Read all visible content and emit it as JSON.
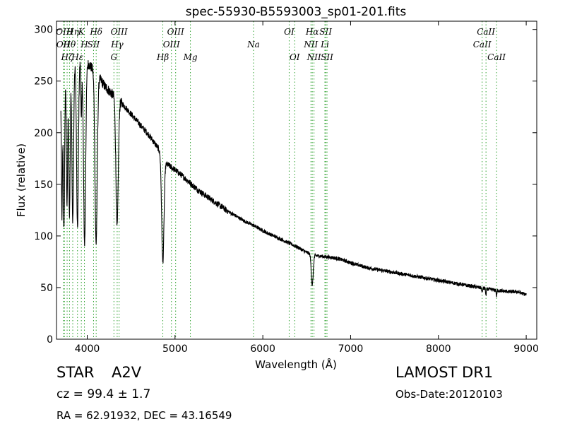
{
  "chart_data": {
    "type": "line",
    "title": "spec-55930-B5593003_sp01-201.fits",
    "xlabel": "Wavelength (Å)",
    "ylabel": "Flux (relative)",
    "xlim": [
      3650,
      9120
    ],
    "ylim": [
      0,
      308
    ],
    "xticks": [
      4000,
      5000,
      6000,
      7000,
      8000,
      9000
    ],
    "yticks": [
      0,
      50,
      100,
      150,
      200,
      250,
      300
    ],
    "grid": false,
    "line_color": "#000000",
    "marker_color": "#2ca02c",
    "spectrum": {
      "continuum": [
        [
          3700,
          236
        ],
        [
          3800,
          262
        ],
        [
          3900,
          268
        ],
        [
          4000,
          268
        ],
        [
          4100,
          258
        ],
        [
          4200,
          245
        ],
        [
          4300,
          236
        ],
        [
          4400,
          228
        ],
        [
          4500,
          218
        ],
        [
          4600,
          208
        ],
        [
          4700,
          198
        ],
        [
          4800,
          186
        ],
        [
          4900,
          170
        ],
        [
          5000,
          164
        ],
        [
          5100,
          157
        ],
        [
          5200,
          149
        ],
        [
          5300,
          142
        ],
        [
          5400,
          136
        ],
        [
          5500,
          130
        ],
        [
          5600,
          124
        ],
        [
          5700,
          119
        ],
        [
          5800,
          114
        ],
        [
          5900,
          110
        ],
        [
          6000,
          105
        ],
        [
          6100,
          101
        ],
        [
          6200,
          97
        ],
        [
          6300,
          93
        ],
        [
          6400,
          89
        ],
        [
          6500,
          84
        ],
        [
          6600,
          81
        ],
        [
          6700,
          80
        ],
        [
          6800,
          79
        ],
        [
          6900,
          77
        ],
        [
          7000,
          74
        ],
        [
          7200,
          69
        ],
        [
          7400,
          66
        ],
        [
          7600,
          63
        ],
        [
          7800,
          60
        ],
        [
          8000,
          57
        ],
        [
          8200,
          54
        ],
        [
          8400,
          51
        ],
        [
          8600,
          48
        ],
        [
          8800,
          46
        ],
        [
          8900,
          46
        ],
        [
          9000,
          43
        ]
      ],
      "absorption_lines": [
        {
          "center": 3712,
          "depth": 120,
          "width": 6
        },
        {
          "center": 3735,
          "depth": 140,
          "width": 7
        },
        {
          "center": 3770,
          "depth": 125,
          "width": 7
        },
        {
          "center": 3798,
          "depth": 140,
          "width": 8
        },
        {
          "center": 3835,
          "depth": 150,
          "width": 9
        },
        {
          "center": 3889,
          "depth": 160,
          "width": 10
        },
        {
          "center": 3933,
          "depth": 55,
          "width": 5
        },
        {
          "center": 3970,
          "depth": 175,
          "width": 12
        },
        {
          "center": 4101,
          "depth": 165,
          "width": 13
        },
        {
          "center": 4340,
          "depth": 125,
          "width": 13
        },
        {
          "center": 4861,
          "depth": 102,
          "width": 13
        },
        {
          "center": 6563,
          "depth": 30,
          "width": 11
        },
        {
          "center": 8498,
          "depth": 5,
          "width": 4
        },
        {
          "center": 8542,
          "depth": 7,
          "width": 4
        },
        {
          "center": 8662,
          "depth": 6,
          "width": 4
        }
      ],
      "start": 3700,
      "end": 9000
    },
    "line_markers": [
      {
        "label": "OII",
        "wavelength": 3727,
        "row": 2
      },
      {
        "label": "OIII",
        "wavelength": 3741,
        "row": 1
      },
      {
        "label": "Hζ",
        "wavelength": 3771,
        "row": 3
      },
      {
        "label": "Hθ",
        "wavelength": 3798,
        "row": 2
      },
      {
        "label": "Hη",
        "wavelength": 3835,
        "row": 1
      },
      {
        "label": "Hε",
        "wavelength": 3889,
        "row": 3
      },
      {
        "label": "K",
        "wavelength": 3933,
        "row": 1
      },
      {
        "label": "H",
        "wavelength": 3968,
        "row": 2
      },
      {
        "label": "SII",
        "wavelength": 4072,
        "row": 2
      },
      {
        "label": "Hδ",
        "wavelength": 4102,
        "row": 1
      },
      {
        "label": "G",
        "wavelength": 4304,
        "row": 3
      },
      {
        "label": "Hγ",
        "wavelength": 4341,
        "row": 2
      },
      {
        "label": "OIII",
        "wavelength": 4363,
        "row": 1
      },
      {
        "label": "Hβ",
        "wavelength": 4861,
        "row": 3
      },
      {
        "label": "OIII",
        "wavelength": 4959,
        "row": 2
      },
      {
        "label": "OIII",
        "wavelength": 5007,
        "row": 1
      },
      {
        "label": "Mg",
        "wavelength": 5175,
        "row": 3
      },
      {
        "label": "Na",
        "wavelength": 5894,
        "row": 2
      },
      {
        "label": "OI",
        "wavelength": 6300,
        "row": 1
      },
      {
        "label": "OI",
        "wavelength": 6363,
        "row": 3
      },
      {
        "label": "NII",
        "wavelength": 6548,
        "row": 2
      },
      {
        "label": "Hα",
        "wavelength": 6563,
        "row": 1
      },
      {
        "label": "NII",
        "wavelength": 6583,
        "row": 3
      },
      {
        "label": "Li",
        "wavelength": 6707,
        "row": 2
      },
      {
        "label": "SII",
        "wavelength": 6716,
        "row": 1
      },
      {
        "label": "SII",
        "wavelength": 6731,
        "row": 3
      },
      {
        "label": "CaII",
        "wavelength": 8498,
        "row": 2
      },
      {
        "label": "CaII",
        "wavelength": 8542,
        "row": 1
      },
      {
        "label": "CaII",
        "wavelength": 8662,
        "row": 3
      }
    ]
  },
  "info": {
    "object_class": "STAR",
    "subclass": "A2V",
    "redshift": "cz = 99.4 ± 1.7",
    "coordinates": "RA = 62.91932, DEC = 43.16549",
    "survey": "LAMOST DR1",
    "obs_date": "Obs-Date:20120103"
  }
}
